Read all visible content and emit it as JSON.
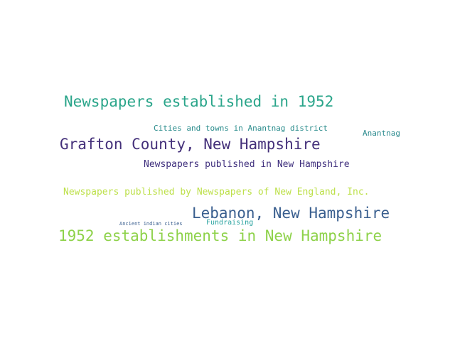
{
  "words": [
    {
      "text": "Newspapers established in 1952",
      "color": "#2aa58a"
    },
    {
      "text": "Cities and towns in Anantnag district",
      "color": "#2a8c8c"
    },
    {
      "text": "Anantnag",
      "color": "#2a8a8e"
    },
    {
      "text": "Grafton County, New Hampshire",
      "color": "#44307a"
    },
    {
      "text": "Newspapers published in New Hampshire",
      "color": "#3f2f7d"
    },
    {
      "text": "Newspapers published by Newspapers of New England, Inc.",
      "color": "#bde04a"
    },
    {
      "text": "Lebanon, New Hampshire",
      "color": "#3a5f8f"
    },
    {
      "text": "Ancient indian cities",
      "color": "#3a5f8f"
    },
    {
      "text": "Fundraising",
      "color": "#2aa3a0"
    },
    {
      "text": "1952 establishments in New Hampshire",
      "color": "#8ed24a"
    }
  ]
}
